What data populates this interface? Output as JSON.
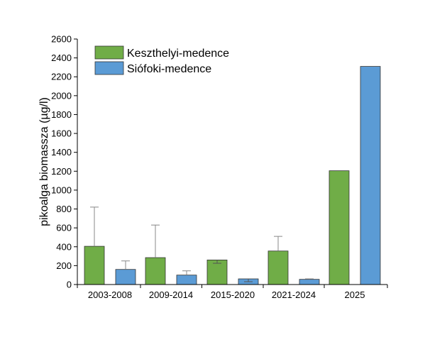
{
  "chart_data": {
    "type": "bar",
    "categories": [
      "2003-2008",
      "2009-2014",
      "2015-2020",
      "2021-2024",
      "2025"
    ],
    "ylabel": "pikoalga biomassza (µg/l)",
    "xlabel": "",
    "ylim": [
      0,
      2600
    ],
    "yticks": [
      0,
      200,
      400,
      600,
      800,
      1000,
      1200,
      1400,
      1600,
      1800,
      2000,
      2200,
      2400,
      2600
    ],
    "grid": false,
    "legend_position": "top-left",
    "series": [
      {
        "name": "Keszthelyi-medence",
        "color": "#70ad47",
        "values": [
          405,
          285,
          260,
          355,
          1205
        ],
        "error_plus": [
          415,
          345,
          0,
          155,
          null
        ],
        "error_minus": [
          null,
          null,
          35,
          null,
          null
        ]
      },
      {
        "name": "Siófoki-medence",
        "color": "#5b9bd5",
        "values": [
          160,
          100,
          60,
          55,
          2310
        ],
        "error_plus": [
          90,
          45,
          0,
          5,
          null
        ],
        "error_minus": [
          null,
          null,
          30,
          null,
          null
        ]
      }
    ]
  }
}
